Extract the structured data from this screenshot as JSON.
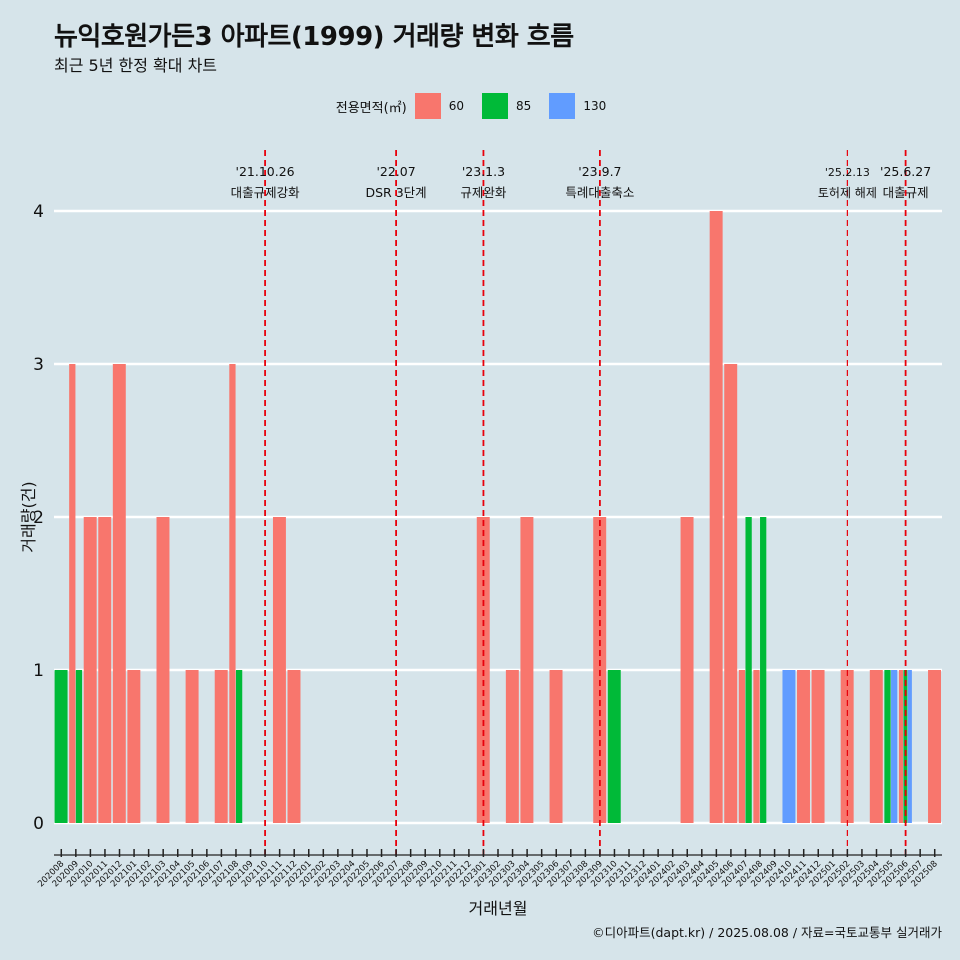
{
  "title": "뉴익호원가든3 아파트(1999) 거래량 변화 흐름",
  "subtitle": "최근 5년 한정 확대 차트",
  "legend": {
    "title": "전용면적(㎡)",
    "items": [
      {
        "label": "60",
        "color": "#f8766d"
      },
      {
        "label": "85",
        "color": "#00ba38"
      },
      {
        "label": "130",
        "color": "#619cff"
      }
    ]
  },
  "caption": "©디아파트(dapt.kr) / 2025.08.08 / 자료=국토교통부 실거래가",
  "chart_data": {
    "type": "bar",
    "xlabel": "거래년월",
    "ylabel": "거래량(건)",
    "ylim": [
      0,
      4
    ],
    "yticks": [
      0,
      1,
      2,
      3,
      4
    ],
    "grid": true,
    "categories": [
      "202008",
      "202009",
      "202010",
      "202011",
      "202012",
      "202101",
      "202102",
      "202103",
      "202104",
      "202105",
      "202106",
      "202107",
      "202108",
      "202109",
      "202110",
      "202111",
      "202112",
      "202201",
      "202202",
      "202203",
      "202204",
      "202205",
      "202206",
      "202207",
      "202208",
      "202209",
      "202210",
      "202211",
      "202212",
      "202301",
      "202302",
      "202303",
      "202304",
      "202305",
      "202306",
      "202307",
      "202308",
      "202309",
      "202310",
      "202311",
      "202312",
      "202401",
      "202402",
      "202403",
      "202404",
      "202405",
      "202406",
      "202407",
      "202408",
      "202409",
      "202410",
      "202411",
      "202412",
      "202501",
      "202502",
      "202503",
      "202504",
      "202505",
      "202506",
      "202507",
      "202508"
    ],
    "series": [
      {
        "name": "60",
        "color": "#f8766d",
        "values": [
          0,
          3,
          2,
          2,
          3,
          1,
          0,
          2,
          0,
          1,
          0,
          1,
          3,
          0,
          0,
          2,
          1,
          0,
          0,
          0,
          0,
          0,
          0,
          0,
          0,
          0,
          0,
          0,
          0,
          2,
          0,
          1,
          2,
          0,
          1,
          0,
          0,
          2,
          0,
          0,
          0,
          0,
          0,
          2,
          0,
          4,
          3,
          1,
          1,
          0,
          0,
          1,
          1,
          0,
          1,
          0,
          1,
          0,
          1,
          0,
          1
        ]
      },
      {
        "name": "85",
        "color": "#00ba38",
        "values": [
          1,
          1,
          0,
          0,
          0,
          0,
          0,
          0,
          0,
          0,
          0,
          0,
          1,
          0,
          0,
          0,
          0,
          0,
          0,
          0,
          0,
          0,
          0,
          0,
          0,
          0,
          0,
          0,
          0,
          0,
          0,
          0,
          0,
          0,
          0,
          0,
          0,
          0,
          1,
          0,
          0,
          0,
          0,
          0,
          0,
          0,
          0,
          2,
          2,
          0,
          0,
          0,
          0,
          0,
          0,
          0,
          0,
          1,
          1,
          0,
          0
        ]
      },
      {
        "name": "130",
        "color": "#619cff",
        "values": [
          0,
          0,
          0,
          0,
          0,
          0,
          0,
          0,
          0,
          0,
          0,
          0,
          0,
          0,
          0,
          0,
          0,
          0,
          0,
          0,
          0,
          0,
          0,
          0,
          0,
          0,
          0,
          0,
          0,
          0,
          0,
          0,
          0,
          0,
          0,
          0,
          0,
          0,
          0,
          0,
          0,
          0,
          0,
          0,
          0,
          0,
          0,
          0,
          0,
          0,
          1,
          0,
          0,
          0,
          0,
          0,
          0,
          1,
          1,
          0,
          0
        ]
      }
    ],
    "annotations": [
      {
        "x": "202110",
        "date": "'21.10.26",
        "label": "대출규제강화"
      },
      {
        "x": "202207",
        "date": "'22.07",
        "label": "DSR 3단계"
      },
      {
        "x": "202301",
        "date": "'23.1.3",
        "label": "규제완화"
      },
      {
        "x": "202309",
        "date": "'23.9.7",
        "label": "특례대출축소"
      },
      {
        "x": "202502",
        "date": "'25.2.13",
        "label": "토허제 해제"
      },
      {
        "x": "202506",
        "date": "'25.6.27",
        "label": "대출규제"
      }
    ]
  }
}
